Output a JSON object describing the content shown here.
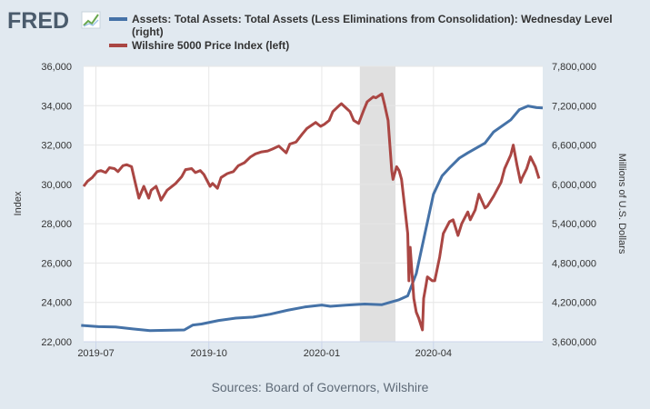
{
  "logo": {
    "text": "FRED"
  },
  "chart_data": {
    "type": "line",
    "legend_placement": "top",
    "grid": true,
    "colors": {
      "assets": "#4572a7",
      "wilshire": "#aa4643",
      "recession": "#e0e0e0",
      "background": "#e1e9f0",
      "plot": "#ffffff"
    },
    "x_range": [
      "2019-06-21",
      "2020-06-29"
    ],
    "x_ticks": [
      {
        "date": "2019-07-01",
        "label": "2019-07"
      },
      {
        "date": "2019-10-01",
        "label": "2019-10"
      },
      {
        "date": "2020-01-01",
        "label": "2020-01"
      },
      {
        "date": "2020-04-01",
        "label": "2020-04"
      }
    ],
    "ylabel_left": "Index",
    "ylabel_right": "Millions of U.S. Dollars",
    "ylim_left": [
      22000,
      36000
    ],
    "ylim_right": [
      3600000,
      7800000
    ],
    "left_ticks": [
      "22,000",
      "24,000",
      "26,000",
      "28,000",
      "30,000",
      "32,000",
      "34,000",
      "36,000"
    ],
    "right_ticks": [
      "3,600,000",
      "4,200,000",
      "4,800,000",
      "5,400,000",
      "6,000,000",
      "6,600,000",
      "7,200,000",
      "7,800,000"
    ],
    "recession": {
      "start": "2020-02-01",
      "end": "2020-03-01"
    },
    "source": "Sources: Board of Governors, Wilshire",
    "series": [
      {
        "name": "Assets: Total Assets: Total Assets (Less Eliminations from Consolidation): Wednesday Level (right)",
        "name_line1": "Assets: Total Assets: Total Assets (Less Eliminations from Consolidation): Wednesday Level",
        "name_line2": "(right)",
        "axis": "right",
        "x": [
          "2019-06-19",
          "2019-07-03",
          "2019-07-17",
          "2019-07-31",
          "2019-08-14",
          "2019-08-28",
          "2019-09-11",
          "2019-09-18",
          "2019-09-25",
          "2019-10-09",
          "2019-10-23",
          "2019-11-06",
          "2019-11-20",
          "2019-12-04",
          "2019-12-18",
          "2020-01-01",
          "2020-01-08",
          "2020-01-22",
          "2020-02-05",
          "2020-02-19",
          "2020-03-04",
          "2020-03-11",
          "2020-03-18",
          "2020-03-25",
          "2020-04-01",
          "2020-04-08",
          "2020-04-15",
          "2020-04-22",
          "2020-04-29",
          "2020-05-13",
          "2020-05-20",
          "2020-06-03",
          "2020-06-10",
          "2020-06-17",
          "2020-06-24"
        ],
        "values": [
          3850000,
          3830000,
          3825000,
          3795000,
          3770000,
          3775000,
          3780000,
          3855000,
          3870000,
          3925000,
          3960000,
          3975000,
          4020000,
          4080000,
          4130000,
          4160000,
          4140000,
          4160000,
          4175000,
          4165000,
          4240000,
          4300000,
          4640000,
          5250000,
          5850000,
          6130000,
          6270000,
          6400000,
          6480000,
          6630000,
          6800000,
          6985000,
          7140000,
          7195000,
          7170000
        ],
        "values_end": [
          7165000
        ]
      },
      {
        "name": "Wilshire 5000 Price Index (left)",
        "axis": "left",
        "x": [
          "2019-06-21",
          "2019-06-24",
          "2019-06-28",
          "2019-07-02",
          "2019-07-05",
          "2019-07-09",
          "2019-07-12",
          "2019-07-16",
          "2019-07-19",
          "2019-07-23",
          "2019-07-26",
          "2019-07-30",
          "2019-08-02",
          "2019-08-05",
          "2019-08-07",
          "2019-08-09",
          "2019-08-13",
          "2019-08-15",
          "2019-08-19",
          "2019-08-22",
          "2019-08-23",
          "2019-08-26",
          "2019-08-28",
          "2019-08-30",
          "2019-09-04",
          "2019-09-09",
          "2019-09-12",
          "2019-09-17",
          "2019-09-20",
          "2019-09-24",
          "2019-09-27",
          "2019-10-02",
          "2019-10-04",
          "2019-10-08",
          "2019-10-11",
          "2019-10-16",
          "2019-10-21",
          "2019-10-25",
          "2019-10-30",
          "2019-11-04",
          "2019-11-08",
          "2019-11-13",
          "2019-11-18",
          "2019-11-22",
          "2019-11-27",
          "2019-12-03",
          "2019-12-06",
          "2019-12-11",
          "2019-12-16",
          "2019-12-20",
          "2019-12-27",
          "2019-12-31",
          "2020-01-03",
          "2020-01-07",
          "2020-01-10",
          "2020-01-15",
          "2020-01-17",
          "2020-01-24",
          "2020-01-27",
          "2020-01-31",
          "2020-02-04",
          "2020-02-07",
          "2020-02-12",
          "2020-02-14",
          "2020-02-19",
          "2020-02-21",
          "2020-02-24",
          "2020-02-27",
          "2020-02-28",
          "2020-03-02",
          "2020-03-04",
          "2020-03-06",
          "2020-03-09",
          "2020-03-11",
          "2020-03-12",
          "2020-03-13",
          "2020-03-16",
          "2020-03-18",
          "2020-03-20",
          "2020-03-23",
          "2020-03-24",
          "2020-03-26",
          "2020-03-27",
          "2020-03-31",
          "2020-04-02",
          "2020-04-06",
          "2020-04-09",
          "2020-04-14",
          "2020-04-17",
          "2020-04-21",
          "2020-04-24",
          "2020-04-29",
          "2020-05-01",
          "2020-05-05",
          "2020-05-08",
          "2020-05-13",
          "2020-05-15",
          "2020-05-20",
          "2020-05-26",
          "2020-05-29",
          "2020-06-03",
          "2020-06-05",
          "2020-06-08",
          "2020-06-11",
          "2020-06-12",
          "2020-06-16",
          "2020-06-19",
          "2020-06-23",
          "2020-06-26"
        ],
        "values": [
          29900,
          30150,
          30350,
          30650,
          30700,
          30600,
          30850,
          30800,
          30650,
          30950,
          31000,
          30900,
          30100,
          29300,
          29600,
          29900,
          29300,
          29700,
          29900,
          29400,
          29200,
          29500,
          29700,
          29800,
          30050,
          30400,
          30750,
          30800,
          30600,
          30700,
          30500,
          29900,
          30050,
          29800,
          30350,
          30550,
          30650,
          30950,
          31100,
          31400,
          31550,
          31650,
          31700,
          31800,
          31950,
          31600,
          32050,
          32150,
          32550,
          32850,
          33150,
          32950,
          33050,
          33250,
          33700,
          34000,
          34100,
          33700,
          33250,
          33100,
          33750,
          34200,
          34450,
          34400,
          34600,
          34100,
          33250,
          30700,
          30250,
          30900,
          30700,
          30250,
          28600,
          27500,
          25100,
          26800,
          24200,
          23500,
          23200,
          22600,
          24200,
          24900,
          25300,
          25100,
          25100,
          26300,
          27500,
          28100,
          28200,
          27400,
          28000,
          28600,
          28200,
          28700,
          29500,
          28800,
          28900,
          29400,
          30100,
          30800,
          31500,
          32000,
          31000,
          30100,
          30300,
          30800,
          31400,
          30900,
          30300
        ]
      }
    ]
  }
}
